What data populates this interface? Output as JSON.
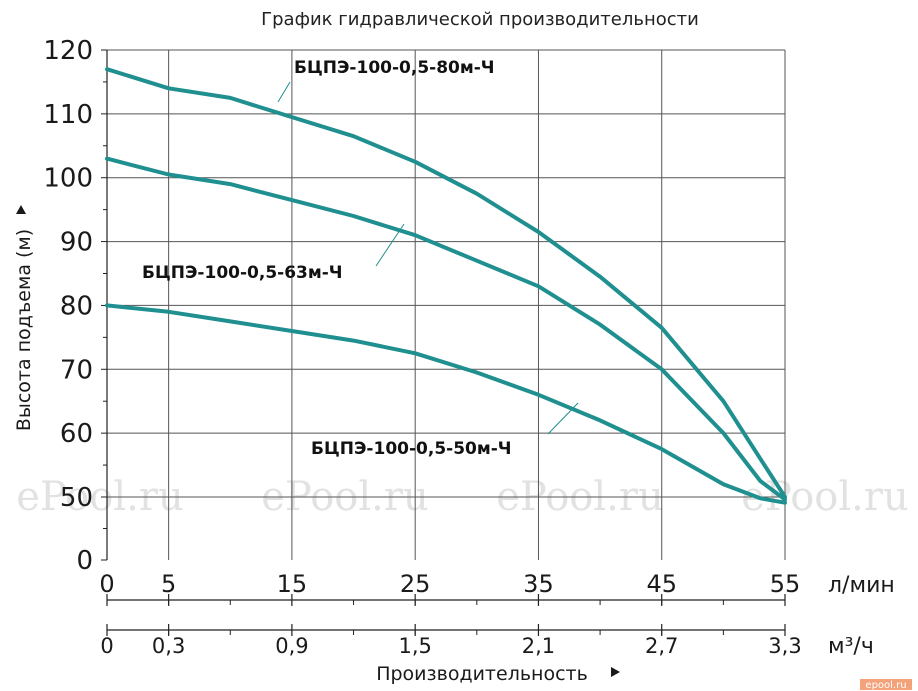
{
  "chart_data": {
    "type": "line",
    "title": "График гидравлической производительности",
    "ylabel": "Высота подъема (м)",
    "xlabel": "Производительность",
    "x_unit": "л/мин",
    "x2_unit": "м³/ч",
    "ylim": [
      0,
      120
    ],
    "yticks": [
      "0",
      "50",
      "60",
      "70",
      "80",
      "90",
      "100",
      "110",
      "120"
    ],
    "xticks": [
      "0",
      "5",
      "15",
      "25",
      "35",
      "45",
      "55"
    ],
    "x2ticks": [
      "0",
      "0,3",
      "0,9",
      "1,5",
      "2,1",
      "2,7",
      "3,3"
    ],
    "grid": true,
    "series": [
      {
        "name": "БЦПЭ-100-0,5-80м-Ч",
        "x": [
          0,
          5,
          10,
          15,
          20,
          25,
          30,
          35,
          40,
          45,
          50,
          53,
          55
        ],
        "y": [
          117,
          114,
          112.5,
          109.5,
          106.5,
          102.5,
          97.5,
          91.5,
          84.5,
          76.5,
          65,
          56,
          50
        ]
      },
      {
        "name": "БЦПЭ-100-0,5-63м-Ч",
        "x": [
          0,
          5,
          10,
          15,
          20,
          25,
          30,
          35,
          40,
          45,
          50,
          53,
          55
        ],
        "y": [
          103,
          100.5,
          99,
          96.5,
          94,
          91,
          87,
          83,
          77,
          70,
          60,
          52.5,
          48
        ]
      },
      {
        "name": "БЦПЭ-100-0,5-50м-Ч",
        "x": [
          0,
          5,
          10,
          15,
          20,
          25,
          30,
          35,
          40,
          45,
          50,
          53,
          55
        ],
        "y": [
          80,
          79,
          77.5,
          76,
          74.5,
          72.5,
          69.5,
          66,
          62,
          57.5,
          52,
          49,
          45.5
        ]
      }
    ],
    "colors": {
      "line": "#1f8f8f",
      "grid": "#555555",
      "leader": "#1f8f8f"
    }
  },
  "watermarks": [
    "ePool.ru",
    "ePool.ru",
    "ePool.ru",
    "ePool.ru"
  ],
  "brand_badge": "epool.ru"
}
